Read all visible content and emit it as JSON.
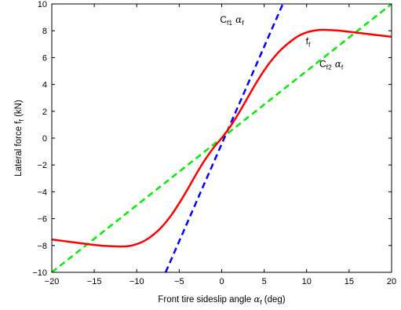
{
  "chart_data": {
    "type": "line",
    "title": "",
    "xlabel": {
      "main": "Front tire sideslip angle ",
      "greek": "α",
      "sub": "f",
      "tail": " (deg)"
    },
    "ylabel": {
      "main": "Lateral force f",
      "sub": "f",
      "tail": " (kN)"
    },
    "xlim": [
      -20,
      20
    ],
    "ylim": [
      -10,
      10
    ],
    "xticks": [
      -20,
      -15,
      -10,
      -5,
      0,
      5,
      10,
      15,
      20
    ],
    "yticks": [
      -10,
      -8,
      -6,
      -4,
      -2,
      0,
      2,
      4,
      6,
      8,
      10
    ],
    "grid": false,
    "series": [
      {
        "name": "f_f",
        "color": "#ff0000",
        "style": "solid",
        "x": [
          -20,
          -18,
          -16,
          -14,
          -12,
          -11,
          -10,
          -9,
          -8,
          -7,
          -6,
          -5,
          -4,
          -3,
          -2,
          -1,
          0,
          1,
          2,
          3,
          4,
          5,
          6,
          7,
          8,
          9,
          10,
          11,
          12,
          14,
          16,
          18,
          20
        ],
        "y": [
          -7.55,
          -7.72,
          -7.88,
          -8.02,
          -8.08,
          -8.05,
          -7.9,
          -7.62,
          -7.18,
          -6.58,
          -5.8,
          -4.85,
          -3.8,
          -2.68,
          -1.65,
          -0.75,
          0,
          0.85,
          1.85,
          2.95,
          4.05,
          5.05,
          5.9,
          6.6,
          7.15,
          7.6,
          7.88,
          8.02,
          8.07,
          8.0,
          7.85,
          7.7,
          7.55
        ]
      },
      {
        "name": "C_f1 α_f",
        "color": "#0000ff",
        "style": "dashed",
        "x": [
          -6.6,
          7.2
        ],
        "y": [
          -10,
          10
        ]
      },
      {
        "name": "C_f2 α_f",
        "color": "#00ee00",
        "style": "dashed",
        "x": [
          -20,
          20
        ],
        "y": [
          -10,
          10
        ]
      }
    ],
    "annotations": [
      {
        "main": "C",
        "sub": "f1",
        "greek": "α",
        "gsub": "f",
        "x": -0.2,
        "y": 8.6
      },
      {
        "main": "f",
        "sub": "f",
        "x": 9.9,
        "y": 7.0
      },
      {
        "main": "C",
        "sub": "f2",
        "greek": "α",
        "gsub": "f",
        "x": 11.5,
        "y": 5.3
      }
    ]
  }
}
